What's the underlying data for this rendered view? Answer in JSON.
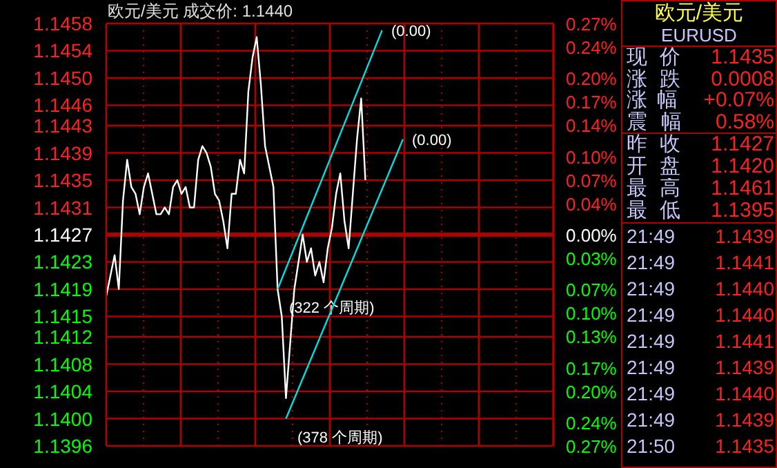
{
  "chart_data": [
    {
      "type": "line",
      "title": "欧元/美元 成交价: 1.1440",
      "categories": [
        null,
        null,
        null,
        null,
        null,
        null,
        null,
        null,
        null,
        null,
        null,
        null,
        null,
        null,
        null,
        null,
        null,
        null,
        null,
        null,
        null,
        null,
        null,
        null,
        null,
        null,
        null,
        null,
        null,
        null,
        null,
        null,
        null,
        null,
        null,
        null,
        null,
        null,
        null,
        null,
        null,
        null,
        null,
        null,
        null,
        null,
        null,
        null,
        null,
        null,
        null,
        null,
        null,
        null,
        null,
        null,
        null,
        null,
        null,
        null,
        null,
        null,
        null,
        null,
        null,
        null,
        null,
        null,
        null,
        null,
        null,
        null,
        null,
        null,
        null,
        null,
        null,
        null,
        null,
        null,
        null,
        null,
        null,
        null,
        null,
        null,
        null,
        null,
        null,
        null,
        null,
        null,
        null,
        null,
        null,
        null,
        null,
        null,
        null,
        null,
        null,
        null,
        null,
        null,
        null,
        null,
        null,
        null
      ],
      "series": [
        {
          "color": "#ffffff",
          "values": [
            1.1418,
            1.1421,
            1.1424,
            1.1419,
            1.1432,
            1.1438,
            1.1434,
            1.1433,
            1.143,
            1.1434,
            1.1436,
            1.1433,
            1.143,
            1.143,
            1.1431,
            1.143,
            1.1434,
            1.1435,
            1.1433,
            1.1434,
            1.1431,
            1.1431,
            1.1438,
            1.144,
            1.1439,
            1.1437,
            1.1433,
            1.1432,
            1.1429,
            1.1425,
            1.1433,
            1.1433,
            1.1438,
            1.1436,
            1.1448,
            1.1453,
            1.1456,
            1.1449,
            1.144,
            1.1437,
            1.1434,
            1.1419,
            1.1415,
            1.1403,
            1.1411,
            1.1419,
            1.1423,
            1.1427,
            1.1423,
            1.1425,
            1.1421,
            1.1423,
            1.142,
            1.1425,
            1.1428,
            1.1433,
            1.1436,
            1.1429,
            1.1425,
            1.1433,
            1.1441,
            1.1447,
            1.1435,
            null,
            null,
            null,
            null,
            null,
            null,
            null,
            null,
            null,
            null,
            null,
            null,
            null,
            null,
            null,
            null,
            null,
            null,
            null,
            null,
            null,
            null,
            null,
            null,
            null,
            null,
            null,
            null,
            null,
            null,
            null,
            null,
            null,
            null,
            null,
            null,
            null,
            null,
            null,
            null,
            null,
            null,
            null,
            null,
            null
          ]
        },
        {
          "color": "#00e0e0",
          "values": [
            null,
            null,
            null,
            null,
            null,
            null,
            null,
            null,
            null,
            null,
            null,
            null,
            null,
            null,
            null,
            null,
            null,
            null,
            null,
            null,
            null,
            null,
            null,
            null,
            null,
            null,
            null,
            null,
            null,
            null,
            null,
            null,
            null,
            null,
            null,
            null,
            null,
            null,
            null,
            null,
            null,
            1.1419,
            null,
            null,
            null,
            null,
            null,
            null,
            null,
            null,
            null,
            null,
            null,
            null,
            null,
            null,
            null,
            null,
            null,
            null,
            null,
            null,
            null,
            null,
            null,
            null,
            1.1457,
            null,
            null,
            null,
            null,
            null,
            null,
            null,
            null,
            null,
            null,
            null,
            null,
            null,
            null,
            null,
            null,
            null,
            null,
            null,
            null,
            null,
            null,
            null,
            null,
            null,
            null,
            null,
            null,
            null,
            null,
            null,
            null,
            null,
            null,
            null,
            null,
            null,
            null,
            null,
            null,
            null
          ]
        },
        {
          "color": "#00e0e0",
          "values": [
            null,
            null,
            null,
            null,
            null,
            null,
            null,
            null,
            null,
            null,
            null,
            null,
            null,
            null,
            null,
            null,
            null,
            null,
            null,
            null,
            null,
            null,
            null,
            null,
            null,
            null,
            null,
            null,
            null,
            null,
            null,
            null,
            null,
            null,
            null,
            null,
            null,
            null,
            null,
            null,
            null,
            null,
            null,
            1.14,
            null,
            null,
            null,
            null,
            null,
            null,
            null,
            null,
            null,
            null,
            null,
            null,
            null,
            null,
            null,
            null,
            null,
            null,
            null,
            null,
            null,
            null,
            null,
            null,
            null,
            null,
            null,
            1.1441,
            null,
            null,
            null,
            null,
            null,
            null,
            null,
            null,
            null,
            null,
            null,
            null,
            null,
            null,
            null,
            null,
            null,
            null,
            null,
            null,
            null,
            null,
            null,
            null,
            null,
            null,
            null,
            null,
            null,
            null,
            null,
            null,
            null,
            null,
            null,
            null
          ]
        }
      ],
      "annotations": [
        "(322 个周期)",
        "(0.00)",
        "(378 个周期)",
        "(0.00)"
      ],
      "ylim": [
        1.1396,
        1.1458
      ],
      "yticks": [
        1.1458,
        1.1454,
        {
          "value": 1.145,
          "label": "1.1450"
        },
        1.1446,
        1.1443,
        1.1439,
        1.1435,
        1.1431,
        1.1427,
        1.1423,
        1.1419,
        1.1415,
        1.1412,
        1.1408,
        1.1404,
        {
          "value": 1.14,
          "label": "1.1400"
        },
        1.1396
      ],
      "y2lim": [
        -0.27,
        0.27
      ],
      "y2ticks": [
        {
          "value": 0.27,
          "label": "0.27%"
        },
        {
          "value": 0.24,
          "label": "0.24%"
        },
        {
          "value": 0.2,
          "label": "0.20%"
        },
        {
          "value": 0.17,
          "label": "0.17%"
        },
        {
          "value": 0.14,
          "label": "0.14%"
        },
        {
          "value": 0.1,
          "label": "0.10%"
        },
        {
          "value": 0.07,
          "label": "0.07%"
        },
        {
          "value": 0.04,
          "label": "0.04%"
        },
        {
          "value": 0,
          "label": "0.00%"
        },
        {
          "value": -0.03,
          "label": "0.03%"
        },
        {
          "value": -0.07,
          "label": "0.07%"
        },
        {
          "value": -0.1,
          "label": "0.10%"
        },
        {
          "value": -0.13,
          "label": "0.13%"
        },
        {
          "value": -0.17,
          "label": "0.17%"
        },
        {
          "value": -0.2,
          "label": "0.20%"
        },
        {
          "value": -0.24,
          "label": "0.24%"
        },
        {
          "value": -0.27,
          "label": "0.27%"
        }
      ],
      "ref_lines": [
        {
          "axis": "y",
          "value": 1.1427,
          "color": "#b00000"
        }
      ],
      "grid": true,
      "tick_labels": "y"
    },
    {
      "type": "other",
      "title": "欧元/美元",
      "subtitle": "EURUSD",
      "annotations": [
        "现价 1.1435",
        "涨跌 0.0008",
        "涨幅 +0.07%",
        "震幅 0.58%"
      ]
    },
    {
      "type": "other",
      "annotations": [
        "昨收 1.1427",
        "开盘 1.1420",
        "最高 1.1461",
        "最低 1.1395"
      ]
    },
    {
      "type": "other",
      "annotations": [
        "21:49 1.1439",
        "21:49 1.1441",
        "21:49 1.1440",
        "21:49 1.1440",
        "21:49 1.1441",
        "21:49 1.1439",
        "21:49 1.1440",
        "21:49 1.1439",
        "21:50 1.1435"
      ]
    }
  ]
}
